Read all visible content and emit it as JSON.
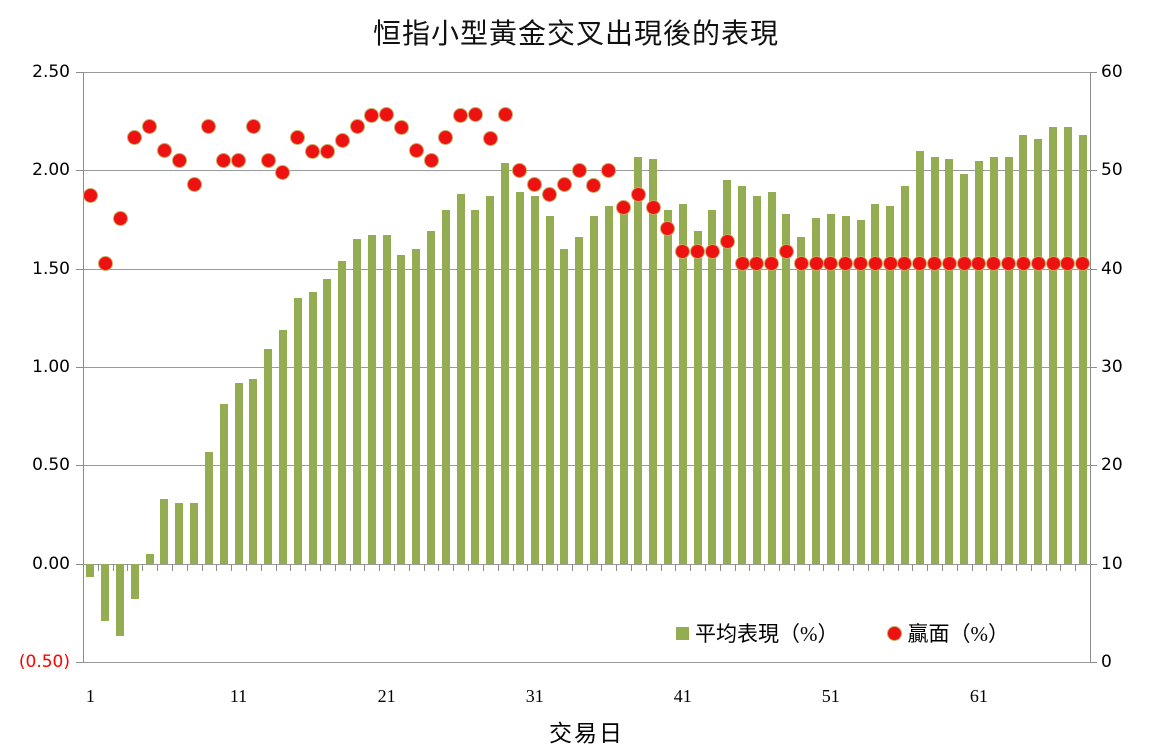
{
  "title": "恒指小型黃金交叉出現後的表現",
  "x_axis": {
    "title": "交易日",
    "tick_labels": [
      "1",
      "11",
      "21",
      "31",
      "41",
      "51",
      "61"
    ],
    "tick_days": [
      1,
      11,
      21,
      31,
      41,
      51,
      61
    ]
  },
  "left_axis": {
    "labels": [
      "2.50",
      "2.00",
      "1.50",
      "1.00",
      "0.50",
      "0.00",
      "(0.50)"
    ],
    "max": 2.5,
    "min": -0.5,
    "negative_label_color": "#ff0000"
  },
  "right_axis": {
    "labels": [
      "60",
      "50",
      "40",
      "30",
      "20",
      "10",
      "0"
    ],
    "max": 60,
    "min": 0
  },
  "legend": {
    "bar_label": "平均表現（%）",
    "dot_label": "贏面（%）"
  },
  "colors": {
    "bar": "#94ac52",
    "dot": "#ee1111",
    "dot_border": "#c8ab62",
    "grid": "#9a9a9a",
    "axis": "#8c8c8c",
    "text": "#000000",
    "negative_label": "#ff0000"
  },
  "chart_data": {
    "type": "combo",
    "title": "恒指小型黃金交叉出現後的表現",
    "xlabel": "交易日",
    "x": [
      1,
      2,
      3,
      4,
      5,
      6,
      7,
      8,
      9,
      10,
      11,
      12,
      13,
      14,
      15,
      16,
      17,
      18,
      19,
      20,
      21,
      22,
      23,
      24,
      25,
      26,
      27,
      28,
      29,
      30,
      31,
      32,
      33,
      34,
      35,
      36,
      37,
      38,
      39,
      40,
      41,
      42,
      43,
      44,
      45,
      46,
      47,
      48,
      49,
      50,
      51,
      52,
      53,
      54,
      55,
      56,
      57,
      58,
      59,
      60,
      61,
      62,
      63,
      64,
      65,
      66,
      67,
      68
    ],
    "left_ylim": [
      -0.5,
      2.5
    ],
    "right_ylim": [
      0,
      60
    ],
    "grid": true,
    "legend_position": "bottom-right-inside",
    "series": [
      {
        "name": "平均表現（%）",
        "type": "bar",
        "axis": "left",
        "values": [
          -0.07,
          -0.29,
          -0.37,
          -0.18,
          0.05,
          0.33,
          0.31,
          0.31,
          0.57,
          0.81,
          0.92,
          0.94,
          1.09,
          1.19,
          1.35,
          1.38,
          1.45,
          1.54,
          1.65,
          1.67,
          1.67,
          1.57,
          1.6,
          1.69,
          1.8,
          1.88,
          1.8,
          1.87,
          2.04,
          1.89,
          1.87,
          1.77,
          1.6,
          1.66,
          1.77,
          1.82,
          1.83,
          2.07,
          2.06,
          1.8,
          1.83,
          1.69,
          1.8,
          1.95,
          1.92,
          1.87,
          1.89,
          1.78,
          1.66,
          1.76,
          1.78,
          1.77,
          1.75,
          1.83,
          1.82,
          1.92,
          2.1,
          2.07,
          2.06,
          1.98,
          2.05,
          2.07,
          2.07,
          2.18,
          2.16,
          2.22,
          2.22,
          2.18
        ]
      },
      {
        "name": "贏面（%）",
        "type": "scatter",
        "axis": "right",
        "values": [
          47.4,
          40.5,
          45.1,
          53.3,
          54.5,
          52.0,
          51.0,
          48.6,
          54.5,
          51.0,
          51.0,
          54.5,
          51.0,
          49.8,
          53.3,
          51.9,
          51.9,
          53.0,
          54.5,
          55.6,
          55.7,
          54.4,
          52.0,
          51.0,
          53.3,
          55.6,
          55.7,
          53.2,
          55.7,
          50.0,
          48.6,
          47.5,
          48.6,
          50.0,
          48.5,
          50.0,
          46.2,
          47.5,
          46.2,
          44.1,
          41.7,
          41.7,
          41.7,
          42.8,
          40.5,
          40.5,
          40.5,
          41.7,
          40.5,
          40.5,
          40.5,
          40.5,
          40.5,
          40.5,
          40.5,
          40.5,
          40.5,
          40.5,
          40.5,
          40.5,
          40.5,
          40.5,
          40.5,
          40.5,
          40.5,
          40.5,
          40.5,
          40.5
        ]
      }
    ]
  }
}
